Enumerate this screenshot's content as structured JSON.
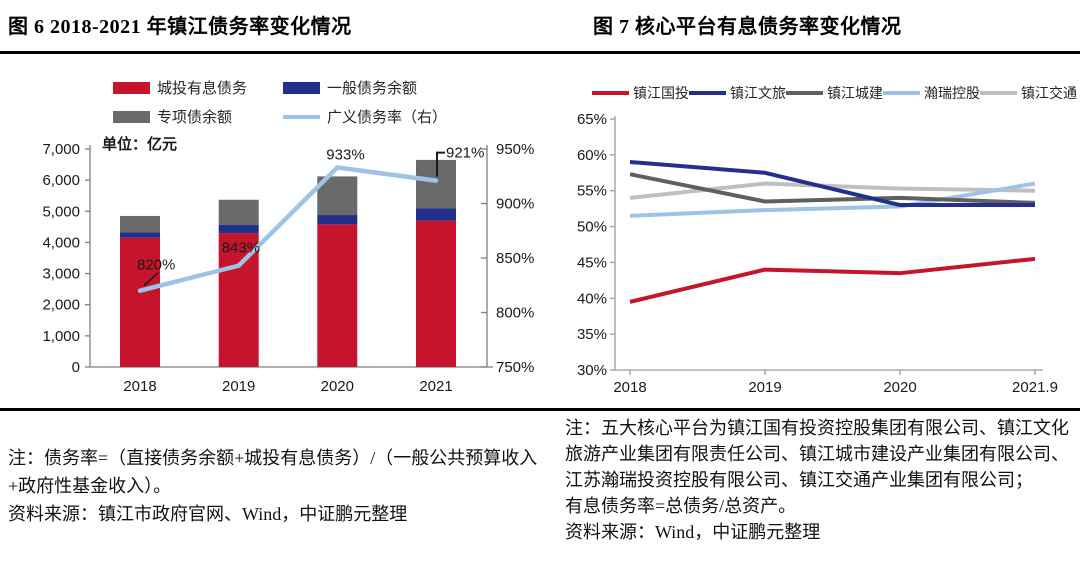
{
  "left_panel": {
    "title": "图 6  2018-2021 年镇江债务率变化情况",
    "notes": [
      "注：债务率=（直接债务余额+城投有息债务）/（一般公共预算收入+政府性基金收入）。",
      "资料来源：镇江市政府官网、Wind，中证鹏元整理"
    ]
  },
  "right_panel": {
    "title": "图 7  核心平台有息债务率变化情况",
    "notes": [
      "注：五大核心平台为镇江国有投资控股集团有限公司、镇江文化旅游产业集团有限责任公司、镇江城市建设产业集团有限公司、江苏瀚瑞投资控股有限公司、镇江交通产业集团有限公司；",
      "有息债务率=总债务/总资产。",
      "资料来源：Wind，中证鹏元整理"
    ]
  },
  "chart_data": [
    {
      "type": "bar",
      "subtype": "stacked-bar-with-line",
      "title": "2018-2021 年镇江债务率变化情况",
      "unit_label": "单位：亿元",
      "categories": [
        "2018",
        "2019",
        "2020",
        "2021"
      ],
      "bar_series": [
        {
          "name": "城投有息债务",
          "color": "#C6142C",
          "values": [
            4150,
            4300,
            4580,
            4700
          ]
        },
        {
          "name": "一般债务余额",
          "color": "#22308C",
          "values": [
            180,
            260,
            300,
            400
          ]
        },
        {
          "name": "专项债余额",
          "color": "#6A6A6A",
          "values": [
            520,
            810,
            1240,
            1550
          ]
        }
      ],
      "line_series": {
        "name": "广义债务率（右）",
        "color": "#9DC3E6",
        "axis": "right",
        "values": [
          820,
          843,
          933,
          921
        ],
        "labels": [
          "820%",
          "843%",
          "933%",
          "921%"
        ]
      },
      "left_axis": {
        "min": 0,
        "max": 7000,
        "step": 1000
      },
      "right_axis": {
        "min": 750,
        "max": 950,
        "step": 50,
        "suffix": "%"
      },
      "grid": "off",
      "legend_position": "top"
    },
    {
      "type": "line",
      "title": "核心平台有息债务率变化情况",
      "x": [
        "2018",
        "2019",
        "2020",
        "2021.9"
      ],
      "series": [
        {
          "name": "镇江国投",
          "color": "#C6142C",
          "values": [
            39.5,
            44,
            43.5,
            45.5
          ]
        },
        {
          "name": "镇江文旅",
          "color": "#22308C",
          "values": [
            59,
            57.5,
            53,
            53
          ]
        },
        {
          "name": "镇江城建",
          "color": "#5F5F5F",
          "values": [
            57.3,
            53.5,
            54,
            53.3
          ]
        },
        {
          "name": "瀚瑞控股",
          "color": "#9DC3E6",
          "values": [
            51.5,
            52.3,
            52.8,
            56
          ]
        },
        {
          "name": "镇江交通",
          "color": "#BFBFBF",
          "values": [
            54,
            56,
            55.3,
            55
          ]
        }
      ],
      "y_axis": {
        "min": 30,
        "max": 65,
        "step": 5,
        "suffix": "%"
      },
      "grid": "off",
      "legend_position": "top"
    }
  ]
}
